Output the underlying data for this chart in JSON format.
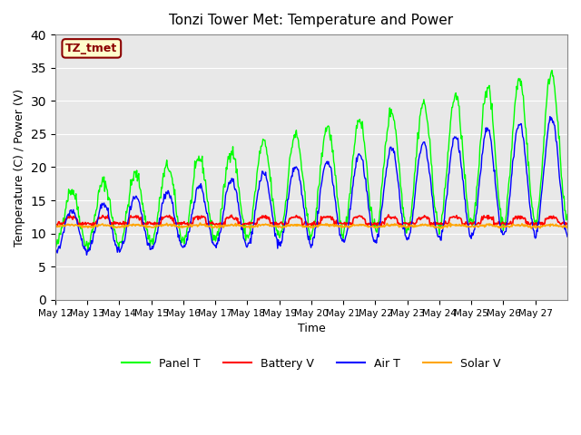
{
  "title": "Tonzi Tower Met: Temperature and Power",
  "xlabel": "Time",
  "ylabel": "Temperature (C) / Power (V)",
  "ylim": [
    0,
    40
  ],
  "yticks": [
    0,
    5,
    10,
    15,
    20,
    25,
    30,
    35,
    40
  ],
  "x_tick_labels": [
    "May 12",
    "May 13",
    "May 14",
    "May 15",
    "May 16",
    "May 17",
    "May 18",
    "May 19",
    "May 20",
    "May 21",
    "May 22",
    "May 23",
    "May 24",
    "May 25",
    "May 26",
    "May 27"
  ],
  "legend_label": "TZ_tmet",
  "panel_color": "#00ff00",
  "battery_color": "#ff0000",
  "air_color": "#0000ff",
  "solar_color": "#ffa500",
  "bg_color": "#e8e8e8",
  "fig_bg_color": "#ffffff",
  "legend_entries": [
    "Panel T",
    "Battery V",
    "Air T",
    "Solar V"
  ],
  "legend_colors": [
    "#00ff00",
    "#ff0000",
    "#0000ff",
    "#ffa500"
  ]
}
